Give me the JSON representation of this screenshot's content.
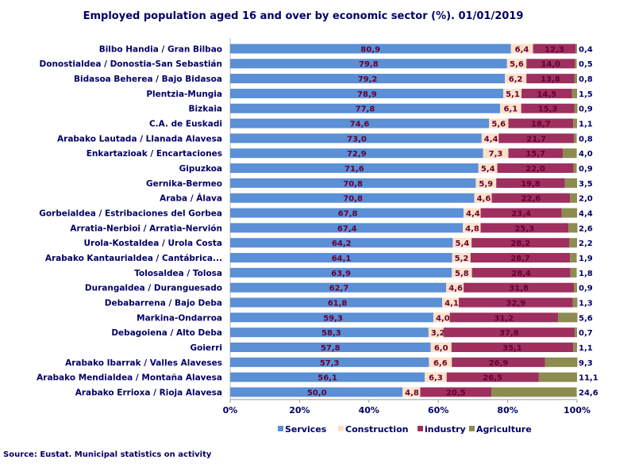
{
  "chart_data": {
    "type": "bar",
    "orientation": "horizontal",
    "stacked": true,
    "title": "Employed population  aged 16 and over by economic sector (%). 01/01/2019",
    "source": "Source: Eustat. Municipal  statistics on activity",
    "xlim": [
      0,
      100
    ],
    "x_ticks": [
      "0%",
      "20%",
      "40%",
      "60%",
      "80%",
      "100%"
    ],
    "legend_position": "bottom",
    "colors": {
      "Services": "#5b8fd6",
      "Construction": "#fde0c8",
      "industry": "#9e2f5f",
      "Agriculture": "#8c8c50"
    },
    "categories": [
      "Bilbo Handia / Gran Bilbao",
      "Donostialdea / Donostia-San Sebastián",
      "Bidasoa Beherea / Bajo Bidasoa",
      "Plentzia-Mungia",
      "Bizkaia",
      "C.A. de Euskadi",
      "Arabako Lautada / Llanada Alavesa",
      "Enkartazioak / Encartaciones",
      "Gipuzkoa",
      "Gernika-Bermeo",
      "Araba / Álava",
      "Gorbeialdea / Estribaciones del Gorbea",
      "Arratia-Nerbioi / Arratia-Nervión",
      "Urola-Kostaldea / Urola Costa",
      "Arabako Kantaurialdea / Cantábrica...",
      "Tolosaldea / Tolosa",
      "Durangaldea / Duranguesado",
      "Debabarrena / Bajo Deba",
      "Markina-Ondarroa",
      "Debagoiena / Alto Deba",
      "Goierri",
      "Arabako Ibarrak / Valles Alaveses",
      "Arabako Mendialdea / Montaña Alavesa",
      "Arabako Errioxa / Rioja Alavesa"
    ],
    "series": [
      {
        "name": "Services",
        "values": [
          80.9,
          79.8,
          79.2,
          78.9,
          77.8,
          74.6,
          73.0,
          72.9,
          71.6,
          70.8,
          70.8,
          67.8,
          67.4,
          64.2,
          64.1,
          63.9,
          62.7,
          61.8,
          59.3,
          58.3,
          57.8,
          57.3,
          56.1,
          50.0
        ],
        "labels": [
          "80,9",
          "79,8",
          "79,2",
          "78,9",
          "77,8",
          "74,6",
          "73,0",
          "72,9",
          "71,6",
          "70,8",
          "70,8",
          "67,8",
          "67,4",
          "64,2",
          "64,1",
          "63,9",
          "62,7",
          "61,8",
          "59,3",
          "58,3",
          "57,8",
          "57,3",
          "56,1",
          "50,0"
        ]
      },
      {
        "name": "Construction",
        "values": [
          6.4,
          5.6,
          6.2,
          5.1,
          6.1,
          5.6,
          4.4,
          7.3,
          5.4,
          5.9,
          4.6,
          4.4,
          4.8,
          5.4,
          5.2,
          5.8,
          4.6,
          4.1,
          4.0,
          3.2,
          6.0,
          6.6,
          6.3,
          4.8
        ],
        "labels": [
          "6,4",
          "5,6",
          "6,2",
          "5,1",
          "6,1",
          "5,6",
          "4,4",
          "7,3",
          "5,4",
          "5,9",
          "4,6",
          "4,4",
          "4,8",
          "5,4",
          "5,2",
          "5,8",
          "4,6",
          "4,1",
          "4,0",
          "3,2",
          "6,0",
          "6,6",
          "6,3",
          "4,8"
        ]
      },
      {
        "name": "industry",
        "values": [
          12.3,
          14.0,
          13.8,
          14.5,
          15.3,
          18.7,
          21.7,
          15.7,
          22.0,
          19.8,
          22.6,
          23.4,
          25.3,
          28.2,
          28.7,
          28.4,
          31.8,
          32.9,
          31.2,
          37.8,
          35.1,
          26.9,
          26.5,
          20.5
        ],
        "labels": [
          "12,3",
          "14,0",
          "13,8",
          "14,5",
          "15,3",
          "18,7",
          "21,7",
          "15,7",
          "22,0",
          "19,8",
          "22,6",
          "23,4",
          "25,3",
          "28,2",
          "28,7",
          "28,4",
          "31,8",
          "32,9",
          "31,2",
          "37,8",
          "35,1",
          "26,9",
          "26,5",
          "20,5"
        ]
      },
      {
        "name": "Agriculture",
        "values": [
          0.4,
          0.5,
          0.8,
          1.5,
          0.9,
          1.1,
          0.8,
          4.0,
          0.9,
          3.5,
          2.0,
          4.4,
          2.6,
          2.2,
          1.9,
          1.8,
          0.9,
          1.3,
          5.6,
          0.7,
          1.1,
          9.3,
          11.1,
          24.6
        ],
        "labels": [
          "0,4",
          "0,5",
          "0,8",
          "1,5",
          "0,9",
          "1,1",
          "0,8",
          "4,0",
          "0,9",
          "3,5",
          "2,0",
          "4,4",
          "2,6",
          "2,2",
          "1,9",
          "1,8",
          "0,9",
          "1,3",
          "5,6",
          "0,7",
          "1,1",
          "9,3",
          "11,1",
          "24,6"
        ]
      }
    ]
  }
}
